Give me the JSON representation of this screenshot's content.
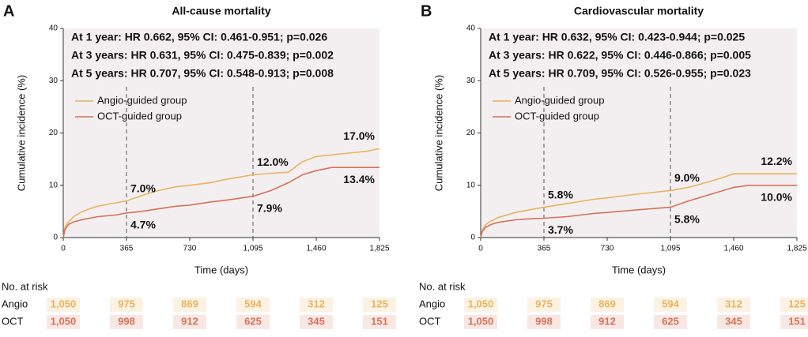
{
  "chart_data": [
    {
      "type": "line",
      "panel_label": "A",
      "title": "All-cause mortality",
      "xlabel": "Time (days)",
      "ylabel": "Cumulative incidence (%)",
      "xlim": [
        0,
        1825
      ],
      "xticks": [
        0,
        365,
        730,
        {
          "value": 1095,
          "label": "1,095"
        },
        {
          "value": 1460,
          "label": "1,460"
        },
        {
          "value": 1825,
          "label": "1,825"
        }
      ],
      "ylim": [
        0,
        40
      ],
      "yticks": [
        0,
        10,
        20,
        30,
        40
      ],
      "reference_lines_x": [
        365,
        1095
      ],
      "annotations": [
        "At 1 year: HR 0.662, 95% CI: 0.461-0.951; p=0.026",
        "At 3 years: HR 0.631, 95% CI: 0.475-0.839; p=0.002",
        "At 5 years: HR 0.707, 95% CI: 0.548-0.913; p=0.008"
      ],
      "series": [
        {
          "name": "Angio-guided group",
          "color": "#e8b45e",
          "x": [
            0,
            10,
            30,
            60,
            100,
            150,
            200,
            280,
            365,
            450,
            550,
            650,
            730,
            850,
            950,
            1095,
            1200,
            1300,
            1380,
            1460,
            1600,
            1750,
            1825
          ],
          "values": [
            0,
            2.0,
            3.0,
            4.0,
            4.8,
            5.5,
            6.0,
            6.5,
            7.0,
            8.0,
            9.0,
            9.7,
            10.0,
            10.5,
            11.2,
            12.0,
            12.3,
            12.5,
            14.5,
            15.5,
            16.0,
            16.5,
            17.0
          ]
        },
        {
          "name": "OCT-guided group",
          "color": "#d4735a",
          "x": [
            0,
            10,
            30,
            60,
            120,
            200,
            300,
            365,
            450,
            550,
            650,
            730,
            850,
            950,
            1095,
            1200,
            1300,
            1380,
            1460,
            1550,
            1825
          ],
          "values": [
            0,
            1.5,
            2.5,
            3.0,
            3.5,
            4.0,
            4.3,
            4.7,
            5.0,
            5.5,
            6.0,
            6.2,
            6.8,
            7.2,
            7.9,
            9.0,
            10.5,
            12.0,
            12.8,
            13.4,
            13.4
          ]
        }
      ],
      "point_labels": [
        {
          "series": 0,
          "x": 365,
          "value": 7.0,
          "label": "7.0%"
        },
        {
          "series": 1,
          "x": 365,
          "value": 4.7,
          "label": "4.7%"
        },
        {
          "series": 0,
          "x": 1095,
          "value": 12.0,
          "label": "12.0%"
        },
        {
          "series": 1,
          "x": 1095,
          "value": 7.9,
          "label": "7.9%"
        },
        {
          "series": 0,
          "x": 1825,
          "value": 17.0,
          "label": "17.0%"
        },
        {
          "series": 1,
          "x": 1825,
          "value": 13.4,
          "label": "13.4%"
        }
      ],
      "risk_table": {
        "title": "No. at risk",
        "rows": [
          {
            "name": "Angio",
            "counts": [
              "1,050",
              "975",
              "869",
              "594",
              "312",
              "125"
            ]
          },
          {
            "name": "OCT",
            "counts": [
              "1,050",
              "998",
              "912",
              "625",
              "345",
              "151"
            ]
          }
        ]
      }
    },
    {
      "type": "line",
      "panel_label": "B",
      "title": "Cardiovascular mortality",
      "xlabel": "Time (days)",
      "ylabel": "Cumulative incidence (%)",
      "xlim": [
        0,
        1825
      ],
      "xticks": [
        0,
        365,
        730,
        {
          "value": 1095,
          "label": "1,095"
        },
        {
          "value": 1460,
          "label": "1,460"
        },
        {
          "value": 1825,
          "label": "1,825"
        }
      ],
      "ylim": [
        0,
        40
      ],
      "yticks": [
        0,
        10,
        20,
        30,
        40
      ],
      "reference_lines_x": [
        365,
        1095
      ],
      "annotations": [
        "At 1 year: HR 0.632, 95% CI: 0.423-0.944; p=0.025",
        "At 3 years: HR 0.622, 95% CI: 0.446-0.866; p=0.005",
        "At 5 years: HR 0.709, 95% CI: 0.526-0.955; p=0.023"
      ],
      "series": [
        {
          "name": "Angio-guided group",
          "color": "#e8b45e",
          "x": [
            0,
            10,
            30,
            60,
            100,
            200,
            300,
            365,
            500,
            650,
            730,
            900,
            1095,
            1200,
            1300,
            1400,
            1460,
            1825
          ],
          "values": [
            0,
            1.5,
            2.5,
            3.2,
            3.8,
            4.8,
            5.4,
            5.8,
            6.5,
            7.3,
            7.6,
            8.3,
            9.0,
            9.6,
            10.5,
            11.5,
            12.2,
            12.2
          ]
        },
        {
          "name": "OCT-guided group",
          "color": "#d4735a",
          "x": [
            0,
            10,
            30,
            60,
            100,
            200,
            300,
            365,
            500,
            650,
            730,
            900,
            1095,
            1200,
            1300,
            1400,
            1460,
            1550,
            1825
          ],
          "values": [
            0,
            1.2,
            2.0,
            2.5,
            2.9,
            3.4,
            3.6,
            3.7,
            4.0,
            4.6,
            4.8,
            5.3,
            5.8,
            7.0,
            8.0,
            9.0,
            9.6,
            10.0,
            10.0
          ]
        }
      ],
      "point_labels": [
        {
          "series": 0,
          "x": 365,
          "value": 5.8,
          "label": "5.8%"
        },
        {
          "series": 1,
          "x": 365,
          "value": 3.7,
          "label": "3.7%"
        },
        {
          "series": 0,
          "x": 1095,
          "value": 9.0,
          "label": "9.0%"
        },
        {
          "series": 1,
          "x": 1095,
          "value": 5.8,
          "label": "5.8%"
        },
        {
          "series": 0,
          "x": 1825,
          "value": 12.2,
          "label": "12.2%"
        },
        {
          "series": 1,
          "x": 1825,
          "value": 10.0,
          "label": "10.0%"
        }
      ],
      "risk_table": {
        "title": "No. at risk",
        "rows": [
          {
            "name": "Angio",
            "counts": [
              "1,050",
              "975",
              "869",
              "594",
              "312",
              "125"
            ]
          },
          {
            "name": "OCT",
            "counts": [
              "1,050",
              "998",
              "912",
              "625",
              "345",
              "151"
            ]
          }
        ]
      }
    }
  ]
}
